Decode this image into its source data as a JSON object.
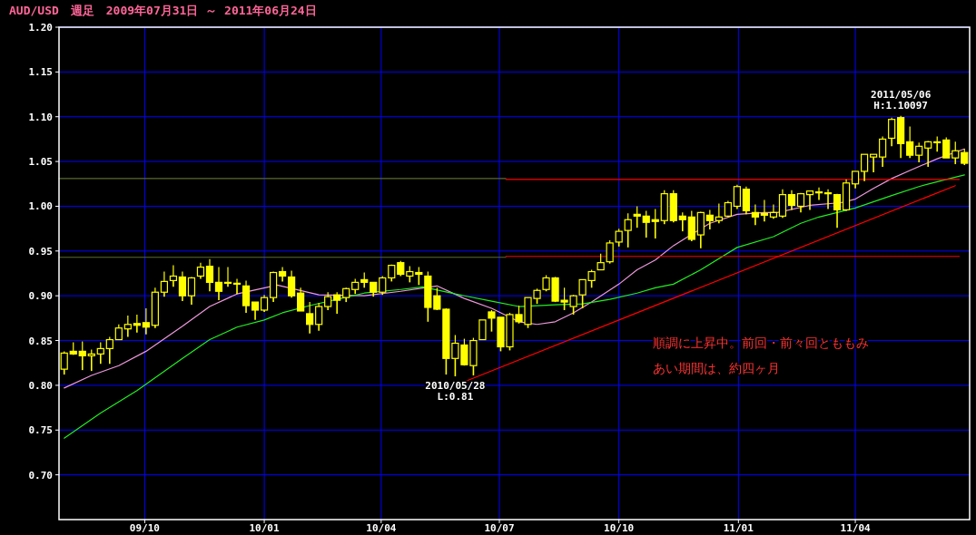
{
  "chart_data": {
    "type": "candlestick",
    "title": "AUD/USD　週足　2009年07月31日 ～ 2011年06月24日",
    "color": "#ffff00",
    "x": [
      "2009-07-31",
      "2009-08-07",
      "2009-08-14",
      "2009-08-21",
      "2009-08-28",
      "2009-09-04",
      "2009-09-11",
      "2009-09-18",
      "2009-09-25",
      "2009-10-02",
      "2009-10-09",
      "2009-10-16",
      "2009-10-23",
      "2009-10-30",
      "2009-11-06",
      "2009-11-13",
      "2009-11-20",
      "2009-11-27",
      "2009-12-04",
      "2009-12-11",
      "2009-12-18",
      "2009-12-25",
      "2010-01-01",
      "2010-01-08",
      "2010-01-15",
      "2010-01-22",
      "2010-01-29",
      "2010-02-05",
      "2010-02-12",
      "2010-02-19",
      "2010-02-26",
      "2010-03-05",
      "2010-03-12",
      "2010-03-19",
      "2010-03-26",
      "2010-04-02",
      "2010-04-09",
      "2010-04-16",
      "2010-04-23",
      "2010-04-30",
      "2010-05-07",
      "2010-05-14",
      "2010-05-21",
      "2010-05-28",
      "2010-06-04",
      "2010-06-11",
      "2010-06-18",
      "2010-06-25",
      "2010-07-02",
      "2010-07-09",
      "2010-07-16",
      "2010-07-23",
      "2010-07-30",
      "2010-08-06",
      "2010-08-13",
      "2010-08-20",
      "2010-08-27",
      "2010-09-03",
      "2010-09-10",
      "2010-09-17",
      "2010-09-24",
      "2010-10-01",
      "2010-10-08",
      "2010-10-15",
      "2010-10-22",
      "2010-10-29",
      "2010-11-05",
      "2010-11-12",
      "2010-11-19",
      "2010-11-26",
      "2010-12-03",
      "2010-12-10",
      "2010-12-17",
      "2010-12-24",
      "2010-12-31",
      "2011-01-07",
      "2011-01-14",
      "2011-01-21",
      "2011-01-28",
      "2011-02-04",
      "2011-02-11",
      "2011-02-18",
      "2011-02-25",
      "2011-03-04",
      "2011-03-11",
      "2011-03-18",
      "2011-03-25",
      "2011-04-01",
      "2011-04-08",
      "2011-04-15",
      "2011-04-22",
      "2011-04-29",
      "2011-05-06",
      "2011-05-13",
      "2011-05-20",
      "2011-05-27",
      "2011-06-03",
      "2011-06-10",
      "2011-06-17",
      "2011-06-24"
    ],
    "ohlc": [
      [
        0.818,
        0.838,
        0.812,
        0.836
      ],
      [
        0.838,
        0.848,
        0.834,
        0.835
      ],
      [
        0.838,
        0.849,
        0.817,
        0.833
      ],
      [
        0.833,
        0.84,
        0.816,
        0.835
      ],
      [
        0.835,
        0.848,
        0.824,
        0.841
      ],
      [
        0.841,
        0.854,
        0.824,
        0.851
      ],
      [
        0.851,
        0.868,
        0.851,
        0.864
      ],
      [
        0.863,
        0.878,
        0.854,
        0.868
      ],
      [
        0.869,
        0.879,
        0.859,
        0.867
      ],
      [
        0.87,
        0.886,
        0.857,
        0.865
      ],
      [
        0.867,
        0.909,
        0.864,
        0.904
      ],
      [
        0.904,
        0.927,
        0.899,
        0.916
      ],
      [
        0.917,
        0.934,
        0.91,
        0.922
      ],
      [
        0.921,
        0.927,
        0.894,
        0.9
      ],
      [
        0.9,
        0.921,
        0.89,
        0.92
      ],
      [
        0.922,
        0.937,
        0.919,
        0.932
      ],
      [
        0.933,
        0.941,
        0.905,
        0.915
      ],
      [
        0.915,
        0.932,
        0.895,
        0.905
      ],
      [
        0.915,
        0.932,
        0.91,
        0.914
      ],
      [
        0.914,
        0.919,
        0.902,
        0.913
      ],
      [
        0.911,
        0.917,
        0.881,
        0.889
      ],
      [
        0.893,
        0.893,
        0.873,
        0.884
      ],
      [
        0.884,
        0.901,
        0.882,
        0.898
      ],
      [
        0.898,
        0.927,
        0.893,
        0.926
      ],
      [
        0.927,
        0.932,
        0.916,
        0.922
      ],
      [
        0.921,
        0.928,
        0.898,
        0.9
      ],
      [
        0.903,
        0.909,
        0.883,
        0.883
      ],
      [
        0.88,
        0.893,
        0.858,
        0.868
      ],
      [
        0.868,
        0.892,
        0.861,
        0.888
      ],
      [
        0.888,
        0.904,
        0.884,
        0.899
      ],
      [
        0.901,
        0.904,
        0.88,
        0.895
      ],
      [
        0.898,
        0.909,
        0.893,
        0.908
      ],
      [
        0.907,
        0.919,
        0.902,
        0.915
      ],
      [
        0.918,
        0.926,
        0.909,
        0.915
      ],
      [
        0.915,
        0.915,
        0.899,
        0.904
      ],
      [
        0.904,
        0.922,
        0.901,
        0.92
      ],
      [
        0.92,
        0.935,
        0.916,
        0.934
      ],
      [
        0.937,
        0.939,
        0.922,
        0.924
      ],
      [
        0.922,
        0.933,
        0.915,
        0.927
      ],
      [
        0.926,
        0.932,
        0.912,
        0.924
      ],
      [
        0.922,
        0.927,
        0.871,
        0.887
      ],
      [
        0.9,
        0.909,
        0.884,
        0.885
      ],
      [
        0.885,
        0.886,
        0.812,
        0.83
      ],
      [
        0.83,
        0.856,
        0.81,
        0.847
      ],
      [
        0.845,
        0.852,
        0.822,
        0.823
      ],
      [
        0.822,
        0.853,
        0.811,
        0.85
      ],
      [
        0.851,
        0.873,
        0.851,
        0.873
      ],
      [
        0.882,
        0.884,
        0.86,
        0.875
      ],
      [
        0.876,
        0.876,
        0.838,
        0.843
      ],
      [
        0.843,
        0.881,
        0.839,
        0.879
      ],
      [
        0.879,
        0.889,
        0.869,
        0.871
      ],
      [
        0.868,
        0.898,
        0.864,
        0.898
      ],
      [
        0.897,
        0.908,
        0.891,
        0.906
      ],
      [
        0.907,
        0.923,
        0.905,
        0.92
      ],
      [
        0.92,
        0.921,
        0.893,
        0.894
      ],
      [
        0.895,
        0.909,
        0.884,
        0.893
      ],
      [
        0.888,
        0.901,
        0.879,
        0.9
      ],
      [
        0.901,
        0.918,
        0.886,
        0.918
      ],
      [
        0.917,
        0.929,
        0.909,
        0.927
      ],
      [
        0.929,
        0.947,
        0.929,
        0.937
      ],
      [
        0.938,
        0.962,
        0.936,
        0.959
      ],
      [
        0.96,
        0.975,
        0.955,
        0.972
      ],
      [
        0.973,
        0.992,
        0.954,
        0.985
      ],
      [
        0.991,
        1.0,
        0.976,
        0.989
      ],
      [
        0.989,
        0.995,
        0.965,
        0.982
      ],
      [
        0.985,
        0.997,
        0.964,
        0.983
      ],
      [
        0.984,
        1.018,
        0.98,
        1.014
      ],
      [
        1.014,
        1.018,
        0.982,
        0.984
      ],
      [
        0.989,
        0.993,
        0.972,
        0.985
      ],
      [
        0.988,
        0.995,
        0.961,
        0.963
      ],
      [
        0.968,
        0.994,
        0.953,
        0.993
      ],
      [
        0.99,
        0.996,
        0.974,
        0.984
      ],
      [
        0.984,
        1.003,
        0.981,
        0.988
      ],
      [
        0.989,
        1.006,
        0.988,
        1.004
      ],
      [
        1.0,
        1.024,
        0.997,
        1.022
      ],
      [
        1.019,
        1.022,
        0.991,
        0.995
      ],
      [
        0.993,
        1.002,
        0.979,
        0.988
      ],
      [
        0.992,
        1.007,
        0.983,
        0.99
      ],
      [
        0.988,
        1.002,
        0.986,
        0.993
      ],
      [
        0.989,
        1.019,
        0.987,
        1.013
      ],
      [
        1.013,
        1.018,
        0.996,
        1.001
      ],
      [
        1.0,
        1.015,
        0.993,
        1.014
      ],
      [
        1.013,
        1.017,
        0.996,
        1.017
      ],
      [
        1.016,
        1.021,
        1.007,
        1.015
      ],
      [
        1.015,
        1.019,
        0.997,
        1.014
      ],
      [
        1.013,
        1.014,
        0.976,
        0.996
      ],
      [
        0.996,
        1.03,
        0.995,
        1.026
      ],
      [
        1.025,
        1.039,
        1.02,
        1.039
      ],
      [
        1.039,
        1.058,
        1.028,
        1.058
      ],
      [
        1.055,
        1.058,
        1.038,
        1.058
      ],
      [
        1.055,
        1.078,
        1.044,
        1.075
      ],
      [
        1.076,
        1.099,
        1.067,
        1.097
      ],
      [
        1.099,
        1.10097,
        1.054,
        1.07
      ],
      [
        1.072,
        1.089,
        1.054,
        1.057
      ],
      [
        1.057,
        1.071,
        1.049,
        1.067
      ],
      [
        1.065,
        1.073,
        1.044,
        1.072
      ],
      [
        1.072,
        1.078,
        1.061,
        1.071
      ],
      [
        1.074,
        1.077,
        1.054,
        1.054
      ],
      [
        1.054,
        1.072,
        1.047,
        1.062
      ],
      [
        1.06,
        1.064,
        1.046,
        1.048
      ]
    ],
    "series": [
      {
        "type": "line",
        "color": "#ee99dd",
        "x": [
          "2009-07-31",
          "2009-08-21",
          "2009-09-11",
          "2009-10-02",
          "2009-10-30",
          "2009-11-20",
          "2009-12-11",
          "2010-01-11",
          "2010-02-12",
          "2010-03-19",
          "2010-04-16",
          "2010-05-14",
          "2010-06-04",
          "2010-06-25",
          "2010-07-16",
          "2010-07-30",
          "2010-08-13",
          "2010-08-27",
          "2010-09-10",
          "2010-10-01",
          "2010-10-15",
          "2010-10-29",
          "2010-11-12",
          "2010-11-22",
          "2010-12-10",
          "2010-12-31",
          "2011-01-21",
          "2011-01-31",
          "2011-02-25",
          "2011-03-21",
          "2011-04-01",
          "2011-04-15",
          "2011-04-29",
          "2011-05-13",
          "2011-06-03",
          "2011-06-24"
        ],
        "values": [
          0.797,
          0.811,
          0.822,
          0.838,
          0.866,
          0.888,
          0.902,
          0.912,
          0.901,
          0.9,
          0.905,
          0.911,
          0.897,
          0.886,
          0.871,
          0.868,
          0.871,
          0.881,
          0.893,
          0.913,
          0.929,
          0.94,
          0.956,
          0.965,
          0.981,
          0.991,
          0.993,
          0.993,
          1.001,
          1.004,
          1.008,
          1.02,
          1.031,
          1.04,
          1.053,
          1.064
        ]
      },
      {
        "type": "line",
        "color": "#22ee22",
        "x": [
          "2009-07-31",
          "2009-08-28",
          "2009-09-25",
          "2009-10-30",
          "2009-11-20",
          "2009-12-11",
          "2010-01-01",
          "2010-01-15",
          "2010-02-05",
          "2010-03-01",
          "2010-03-19",
          "2010-04-16",
          "2010-05-03",
          "2010-05-28",
          "2010-06-25",
          "2010-07-16",
          "2010-08-13",
          "2010-09-03",
          "2010-09-24",
          "2010-10-15",
          "2010-10-29",
          "2010-11-12",
          "2010-12-03",
          "2010-12-31",
          "2011-01-28",
          "2011-02-18",
          "2011-03-04",
          "2011-04-01",
          "2011-04-29",
          "2011-05-20",
          "2011-06-10",
          "2011-06-24"
        ],
        "values": [
          0.741,
          0.769,
          0.794,
          0.83,
          0.851,
          0.865,
          0.873,
          0.881,
          0.889,
          0.897,
          0.903,
          0.907,
          0.91,
          0.902,
          0.894,
          0.888,
          0.89,
          0.891,
          0.896,
          0.903,
          0.909,
          0.913,
          0.929,
          0.954,
          0.966,
          0.981,
          0.988,
          0.998,
          1.012,
          1.022,
          1.03,
          1.035
        ]
      },
      {
        "type": "line",
        "color": "#5a6a30",
        "x": [
          "2009-07-27",
          "2010-07-06"
        ],
        "values": [
          1.031,
          1.031
        ]
      },
      {
        "type": "line",
        "color": "#5a6a30",
        "x": [
          "2009-07-27",
          "2010-07-06"
        ],
        "values": [
          0.943,
          0.943
        ]
      },
      {
        "type": "line",
        "color": "#ff0000",
        "x": [
          "2010-07-06",
          "2011-06-20"
        ],
        "values": [
          1.03,
          1.03
        ]
      },
      {
        "type": "line",
        "color": "#ff0000",
        "x": [
          "2010-07-06",
          "2011-06-20"
        ],
        "values": [
          0.944,
          0.944
        ]
      },
      {
        "type": "line",
        "color": "#ff0000",
        "x": [
          "2010-06-04",
          "2011-06-17"
        ],
        "values": [
          0.804,
          1.023
        ]
      }
    ],
    "xlim": [
      "2009-07-27",
      "2011-06-28"
    ],
    "xticks": [
      {
        "value": "2009-10-01",
        "label": "09/10"
      },
      {
        "value": "2010-01-01",
        "label": "10/01"
      },
      {
        "value": "2010-04-01",
        "label": "10/04"
      },
      {
        "value": "2010-07-01",
        "label": "10/07"
      },
      {
        "value": "2010-10-01",
        "label": "10/10"
      },
      {
        "value": "2011-01-01",
        "label": "11/01"
      },
      {
        "value": "2011-04-01",
        "label": "11/04"
      }
    ],
    "ylim": [
      0.65,
      1.2
    ],
    "yticks": [
      {
        "value": 0.7,
        "label": "0.70"
      },
      {
        "value": 0.75,
        "label": "0.75"
      },
      {
        "value": 0.8,
        "label": "0.80"
      },
      {
        "value": 0.85,
        "label": "0.85"
      },
      {
        "value": 0.9,
        "label": "0.90"
      },
      {
        "value": 0.95,
        "label": "0.95"
      },
      {
        "value": 1.0,
        "label": "1.00"
      },
      {
        "value": 1.05,
        "label": "1.05"
      },
      {
        "value": 1.1,
        "label": "1.10"
      },
      {
        "value": 1.15,
        "label": "1.15"
      },
      {
        "value": 1.2,
        "label": "1.20"
      }
    ],
    "grid": true,
    "annotations": [
      {
        "text": "2010/05/28\nL:0.81",
        "x": "2010-05-28",
        "y": 0.81
      },
      {
        "text": "2011/05/06\nH:1.10097",
        "x": "2011-05-06",
        "y": 1.10097
      },
      "順調に上昇中。前回・前々回とももみ",
      "あい期間は、約四ヶ月"
    ]
  }
}
